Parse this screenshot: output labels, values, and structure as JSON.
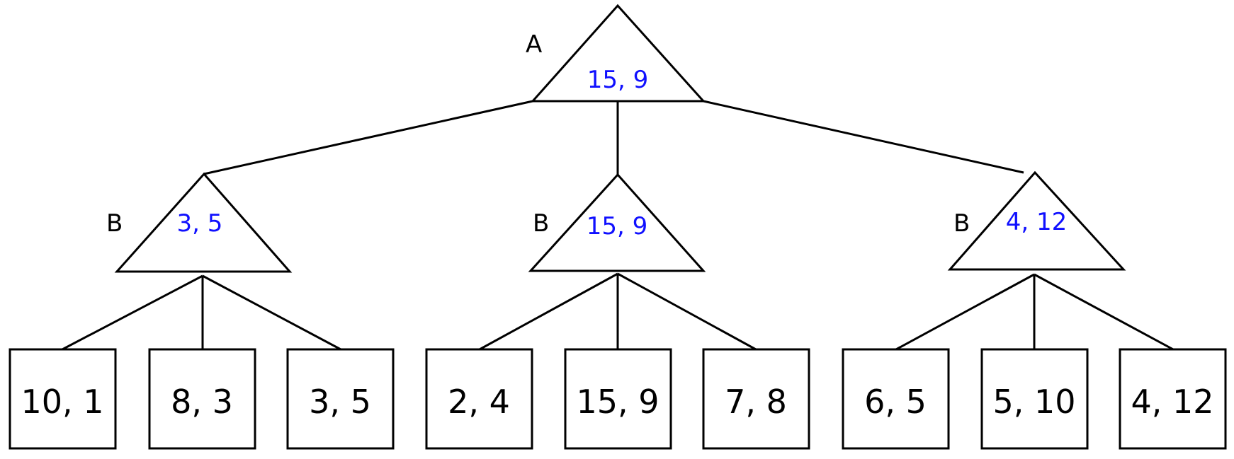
{
  "colors": {
    "value_text": "#1010ff",
    "line": "#000000"
  },
  "root": {
    "player": "A",
    "value": "15, 9"
  },
  "level1": [
    {
      "player": "B",
      "value": "3, 5"
    },
    {
      "player": "B",
      "value": "15, 9"
    },
    {
      "player": "B",
      "value": "4, 12"
    }
  ],
  "leaves": [
    "10, 1",
    "8, 3",
    "3, 5",
    "2, 4",
    "15, 9",
    "7, 8",
    "6, 5",
    "5, 10",
    "4, 12"
  ]
}
